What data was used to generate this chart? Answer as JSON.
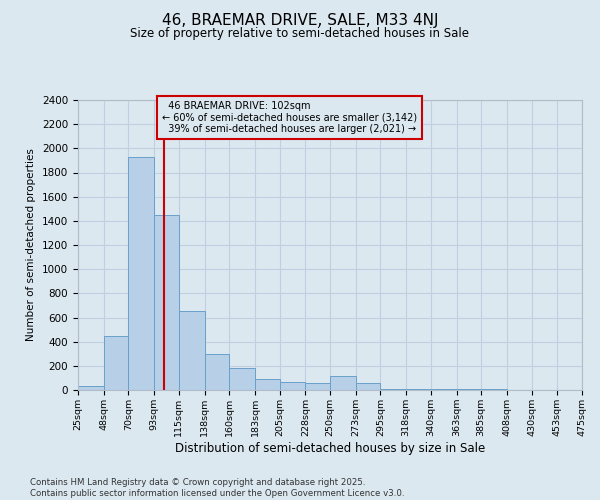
{
  "title": "46, BRAEMAR DRIVE, SALE, M33 4NJ",
  "subtitle": "Size of property relative to semi-detached houses in Sale",
  "xlabel": "Distribution of semi-detached houses by size in Sale",
  "ylabel": "Number of semi-detached properties",
  "property_label": "46 BRAEMAR DRIVE: 102sqm",
  "smaller_text": "← 60% of semi-detached houses are smaller (3,142)",
  "larger_text": "39% of semi-detached houses are larger (2,021) →",
  "property_size": 102,
  "bin_edges": [
    25,
    48,
    70,
    93,
    115,
    138,
    160,
    183,
    205,
    228,
    250,
    273,
    295,
    318,
    340,
    363,
    385,
    408,
    430,
    453,
    475
  ],
  "bar_heights": [
    30,
    450,
    1930,
    1450,
    650,
    300,
    185,
    90,
    70,
    55,
    120,
    60,
    10,
    5,
    5,
    5,
    5,
    3,
    3,
    2
  ],
  "bar_color": "#b8cfe8",
  "bar_edge_color": "#6aa0cc",
  "line_color": "#cc0000",
  "annotation_box_color": "#cc0000",
  "grid_color": "#c0d0e0",
  "background_color": "#dce8f0",
  "ylim": [
    0,
    2400
  ],
  "yticks": [
    0,
    200,
    400,
    600,
    800,
    1000,
    1200,
    1400,
    1600,
    1800,
    2000,
    2200,
    2400
  ],
  "footer_line1": "Contains HM Land Registry data © Crown copyright and database right 2025.",
  "footer_line2": "Contains public sector information licensed under the Open Government Licence v3.0."
}
